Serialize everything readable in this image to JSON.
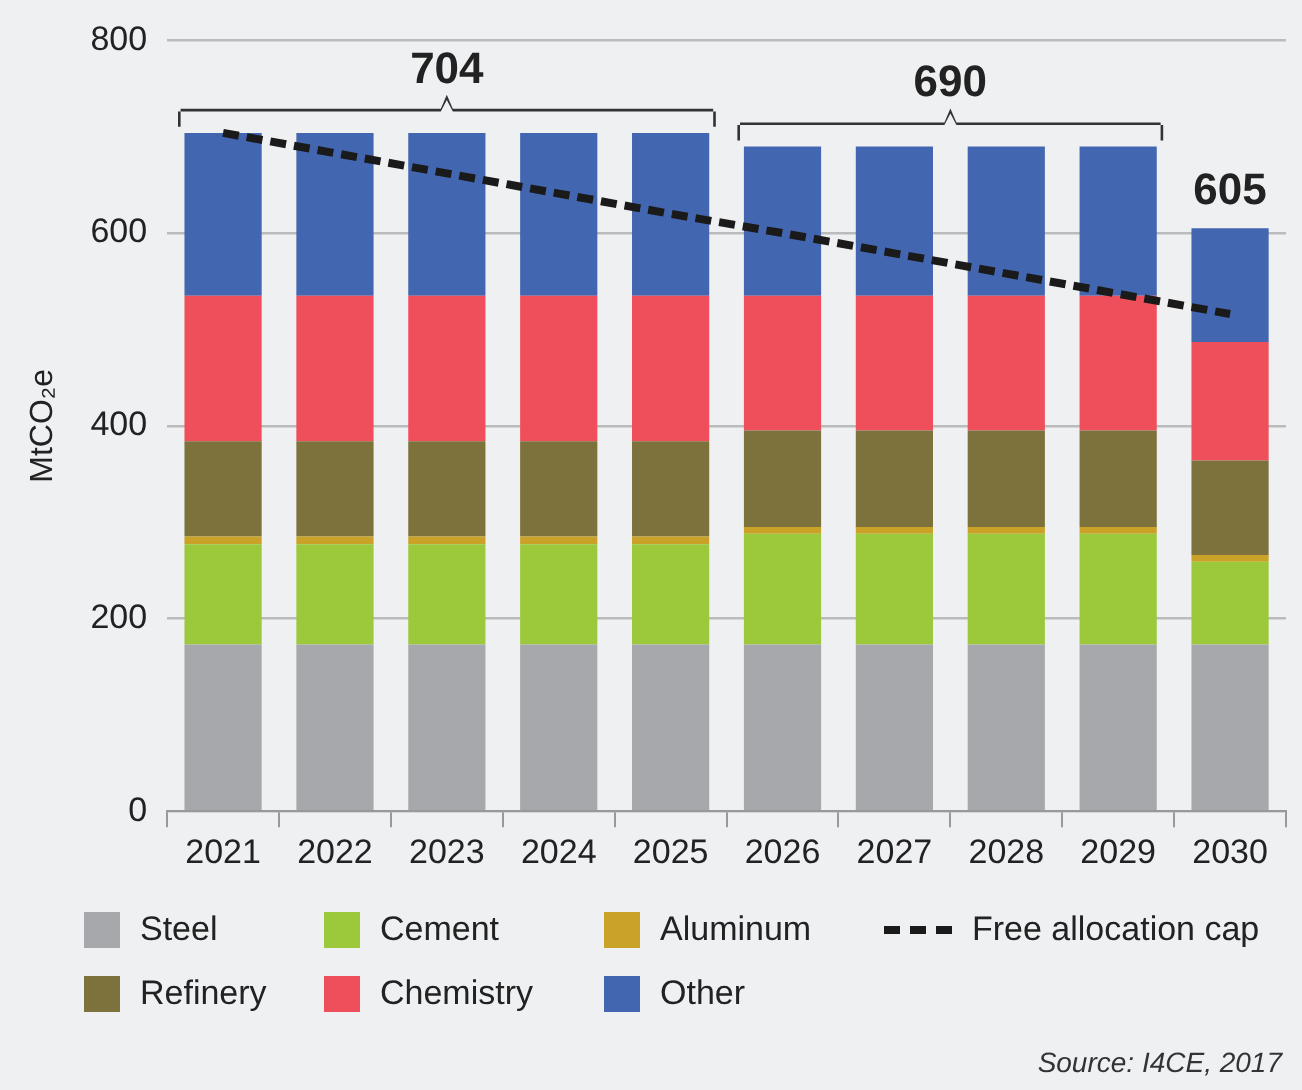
{
  "chart_data": {
    "type": "bar",
    "stacked": true,
    "ylabel": "MtCO₂e",
    "categories": [
      "2021",
      "2022",
      "2023",
      "2024",
      "2025",
      "2026",
      "2027",
      "2028",
      "2029",
      "2030"
    ],
    "series": [
      {
        "name": "Steel",
        "color": "#a7a8ab",
        "values": [
          173,
          173,
          173,
          173,
          173,
          173,
          173,
          173,
          173,
          173
        ]
      },
      {
        "name": "Cement",
        "color": "#9bc93b",
        "values": [
          104,
          104,
          104,
          104,
          104,
          115,
          115,
          115,
          115,
          86
        ]
      },
      {
        "name": "Aluminum",
        "color": "#c9a227",
        "values": [
          8,
          8,
          8,
          8,
          8,
          7,
          7,
          7,
          7,
          7
        ]
      },
      {
        "name": "Refinery",
        "color": "#7d723c",
        "values": [
          99,
          99,
          99,
          99,
          99,
          100,
          100,
          100,
          100,
          98
        ]
      },
      {
        "name": "Chemistry",
        "color": "#ef4f5a",
        "values": [
          151,
          151,
          151,
          151,
          151,
          140,
          140,
          140,
          140,
          123
        ]
      },
      {
        "name": "Other",
        "color": "#4366b0",
        "values": [
          169,
          169,
          169,
          169,
          169,
          155,
          155,
          155,
          155,
          118
        ]
      },
      {
        "name": "Free allocation cap",
        "type": "line",
        "line_style": "dashed",
        "marker": "none",
        "color": "#1a1a1a",
        "values": [
          704,
          683,
          662,
          641,
          620,
          600,
          579,
          558,
          537,
          516
        ]
      }
    ],
    "ylim": [
      0,
      800
    ],
    "yticks": [
      0,
      200,
      400,
      600,
      800
    ],
    "grid": "y",
    "legend": "bottom",
    "annotations": [
      {
        "text": "704",
        "x": "2023",
        "y": 704
      },
      {
        "text": "690",
        "x": "2027",
        "y": 690
      },
      {
        "text": "605",
        "x": "2030",
        "y": 605
      },
      "Source: I4CE, 2017"
    ]
  }
}
